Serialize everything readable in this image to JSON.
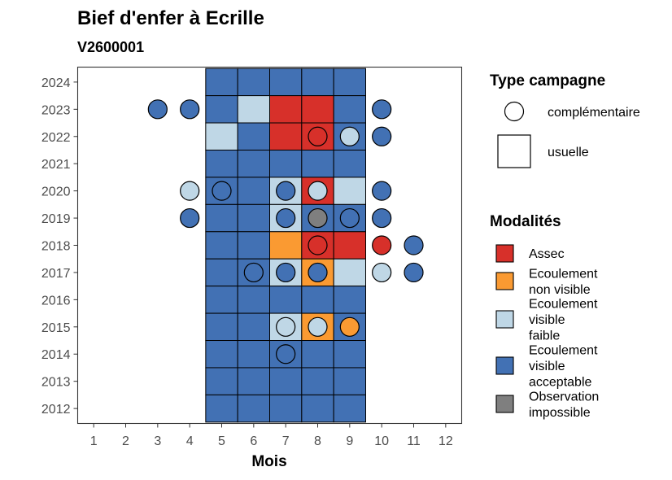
{
  "chart_data": {
    "type": "heatmap",
    "title": "Bief d'enfer à Ecrille",
    "subtitle": "V2600001",
    "xlabel": "Mois",
    "ylabel": "",
    "x_ticks": [
      1,
      2,
      3,
      4,
      5,
      6,
      7,
      8,
      9,
      10,
      11,
      12
    ],
    "y_ticks": [
      2012,
      2013,
      2014,
      2015,
      2016,
      2017,
      2018,
      2019,
      2020,
      2021,
      2022,
      2023,
      2024
    ],
    "xlim": [
      0.5,
      12.5
    ],
    "ylim": [
      2011.45,
      2024.55
    ],
    "colors": {
      "Assec": "#d7302a",
      "Ecoulement non visible": "#fa9a32",
      "Ecoulement visible faible": "#bfd7e6",
      "Ecoulement visible acceptable": "#4271b4",
      "Observation impossible": "#7f7f7f"
    },
    "legend_type": {
      "title": "Type campagne",
      "items": [
        {
          "label": "complémentaire",
          "shape": "circle"
        },
        {
          "label": "usuelle",
          "shape": "square"
        }
      ]
    },
    "legend_modalites": {
      "title": "Modalités",
      "items": [
        {
          "key": "Assec",
          "lines": [
            "Assec"
          ]
        },
        {
          "key": "Ecoulement non visible",
          "lines": [
            "Ecoulement",
            "non visible"
          ]
        },
        {
          "key": "Ecoulement visible faible",
          "lines": [
            "Ecoulement",
            "visible",
            "faible"
          ]
        },
        {
          "key": "Ecoulement visible acceptable",
          "lines": [
            "Ecoulement",
            "visible",
            "acceptable"
          ]
        },
        {
          "key": "Observation impossible",
          "lines": [
            "Observation",
            "impossible"
          ]
        }
      ]
    },
    "usuelle": [
      {
        "year": 2024,
        "months": {
          "5": "Ecoulement visible acceptable",
          "6": "Ecoulement visible acceptable",
          "7": "Ecoulement visible acceptable",
          "8": "Ecoulement visible acceptable",
          "9": "Ecoulement visible acceptable"
        }
      },
      {
        "year": 2023,
        "months": {
          "5": "Ecoulement visible acceptable",
          "6": "Ecoulement visible faible",
          "7": "Assec",
          "8": "Assec",
          "9": "Ecoulement visible acceptable"
        }
      },
      {
        "year": 2022,
        "months": {
          "5": "Ecoulement visible faible",
          "6": "Ecoulement visible acceptable",
          "7": "Assec",
          "8": "Assec",
          "9": "Ecoulement visible acceptable"
        }
      },
      {
        "year": 2021,
        "months": {
          "5": "Ecoulement visible acceptable",
          "6": "Ecoulement visible acceptable",
          "7": "Ecoulement visible acceptable",
          "8": "Ecoulement visible acceptable",
          "9": "Ecoulement visible acceptable"
        }
      },
      {
        "year": 2020,
        "months": {
          "5": "Ecoulement visible acceptable",
          "6": "Ecoulement visible acceptable",
          "7": "Ecoulement visible faible",
          "8": "Assec",
          "9": "Ecoulement visible faible"
        }
      },
      {
        "year": 2019,
        "months": {
          "5": "Ecoulement visible acceptable",
          "6": "Ecoulement visible acceptable",
          "7": "Ecoulement visible faible",
          "8": "Ecoulement visible acceptable",
          "9": "Ecoulement visible acceptable"
        }
      },
      {
        "year": 2018,
        "months": {
          "5": "Ecoulement visible acceptable",
          "6": "Ecoulement visible acceptable",
          "7": "Ecoulement non visible",
          "8": "Assec",
          "9": "Assec"
        }
      },
      {
        "year": 2017,
        "months": {
          "5": "Ecoulement visible acceptable",
          "6": "Ecoulement visible acceptable",
          "7": "Ecoulement visible faible",
          "8": "Ecoulement non visible",
          "9": "Ecoulement visible faible"
        }
      },
      {
        "year": 2016,
        "months": {
          "5": "Ecoulement visible acceptable",
          "6": "Ecoulement visible acceptable",
          "7": "Ecoulement visible acceptable",
          "8": "Ecoulement visible acceptable",
          "9": "Ecoulement visible acceptable"
        }
      },
      {
        "year": 2015,
        "months": {
          "5": "Ecoulement visible acceptable",
          "6": "Ecoulement visible acceptable",
          "7": "Ecoulement visible faible",
          "8": "Ecoulement non visible",
          "9": "Ecoulement visible acceptable"
        }
      },
      {
        "year": 2014,
        "months": {
          "5": "Ecoulement visible acceptable",
          "6": "Ecoulement visible acceptable",
          "7": "Ecoulement visible acceptable",
          "8": "Ecoulement visible acceptable",
          "9": "Ecoulement visible acceptable"
        }
      },
      {
        "year": 2013,
        "months": {
          "5": "Ecoulement visible acceptable",
          "6": "Ecoulement visible acceptable",
          "7": "Ecoulement visible acceptable",
          "8": "Ecoulement visible acceptable",
          "9": "Ecoulement visible acceptable"
        }
      },
      {
        "year": 2012,
        "months": {
          "5": "Ecoulement visible acceptable",
          "6": "Ecoulement visible acceptable",
          "7": "Ecoulement visible acceptable",
          "8": "Ecoulement visible acceptable",
          "9": "Ecoulement visible acceptable"
        }
      }
    ],
    "complementaire": [
      {
        "year": 2023,
        "month": 3,
        "value": "Ecoulement visible acceptable"
      },
      {
        "year": 2023,
        "month": 4,
        "value": "Ecoulement visible acceptable"
      },
      {
        "year": 2023,
        "month": 10,
        "value": "Ecoulement visible acceptable"
      },
      {
        "year": 2022,
        "month": 8,
        "value": "Assec"
      },
      {
        "year": 2022,
        "month": 9,
        "value": "Ecoulement visible faible"
      },
      {
        "year": 2022,
        "month": 10,
        "value": "Ecoulement visible acceptable"
      },
      {
        "year": 2020,
        "month": 4,
        "value": "Ecoulement visible faible"
      },
      {
        "year": 2020,
        "month": 5,
        "value": "Ecoulement visible acceptable"
      },
      {
        "year": 2020,
        "month": 7,
        "value": "Ecoulement visible acceptable"
      },
      {
        "year": 2020,
        "month": 8,
        "value": "Ecoulement visible faible"
      },
      {
        "year": 2020,
        "month": 10,
        "value": "Ecoulement visible acceptable"
      },
      {
        "year": 2019,
        "month": 4,
        "value": "Ecoulement visible acceptable"
      },
      {
        "year": 2019,
        "month": 7,
        "value": "Ecoulement visible acceptable"
      },
      {
        "year": 2019,
        "month": 8,
        "value": "Observation impossible"
      },
      {
        "year": 2019,
        "month": 9,
        "value": "Ecoulement visible acceptable"
      },
      {
        "year": 2019,
        "month": 10,
        "value": "Ecoulement visible acceptable"
      },
      {
        "year": 2018,
        "month": 8,
        "value": "Assec"
      },
      {
        "year": 2018,
        "month": 10,
        "value": "Assec"
      },
      {
        "year": 2018,
        "month": 11,
        "value": "Ecoulement visible acceptable"
      },
      {
        "year": 2017,
        "month": 6,
        "value": "Ecoulement visible acceptable"
      },
      {
        "year": 2017,
        "month": 7,
        "value": "Ecoulement visible acceptable"
      },
      {
        "year": 2017,
        "month": 8,
        "value": "Ecoulement visible acceptable"
      },
      {
        "year": 2017,
        "month": 10,
        "value": "Ecoulement visible faible"
      },
      {
        "year": 2017,
        "month": 11,
        "value": "Ecoulement visible acceptable"
      },
      {
        "year": 2015,
        "month": 7,
        "value": "Ecoulement visible faible"
      },
      {
        "year": 2015,
        "month": 8,
        "value": "Ecoulement visible faible"
      },
      {
        "year": 2015,
        "month": 9,
        "value": "Ecoulement non visible"
      },
      {
        "year": 2014,
        "month": 7,
        "value": "Ecoulement visible acceptable"
      }
    ]
  }
}
